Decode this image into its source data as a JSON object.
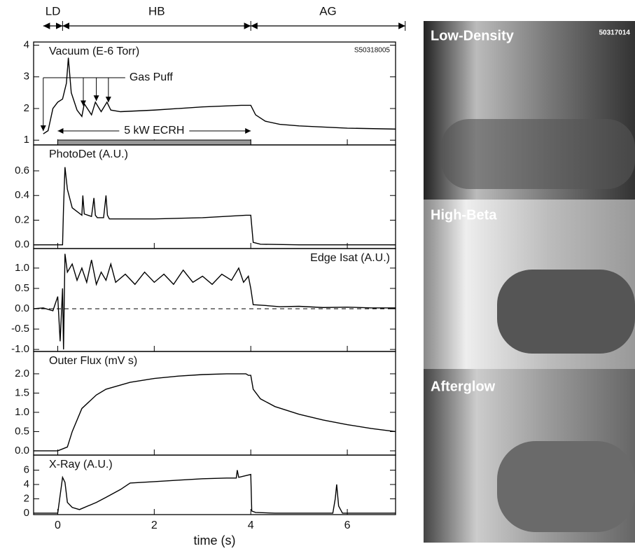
{
  "phases": [
    {
      "label": "LD",
      "start": -0.3,
      "end": 0.1
    },
    {
      "label": "HB",
      "start": 0.1,
      "end": 4
    },
    {
      "label": "AG",
      "start": 4,
      "end": 7.2
    }
  ],
  "photos": {
    "labels": [
      "Low-Density",
      "High-Beta",
      "Afterglow"
    ],
    "shot": "50317014"
  },
  "chart_data": [
    {
      "type": "line",
      "title": "Vacuum (E-6 Torr)",
      "shot": "S50318005",
      "gas_puff_label": "Gas Puff",
      "gas_puffs": [
        -0.3,
        0.53,
        0.8,
        1.05
      ],
      "ecrh_label": "5 kW ECRH",
      "ecrh": [
        0,
        4
      ],
      "x": [
        -0.3,
        -0.2,
        -0.1,
        0,
        0.1,
        0.18,
        0.22,
        0.28,
        0.4,
        0.5,
        0.55,
        0.7,
        0.78,
        0.9,
        1.02,
        1.1,
        1.3,
        2,
        3,
        3.8,
        4,
        4.1,
        4.3,
        4.6,
        5,
        6,
        7
      ],
      "values": [
        1.2,
        1.3,
        2.0,
        2.2,
        2.3,
        2.8,
        3.6,
        2.5,
        1.95,
        1.75,
        2.15,
        1.8,
        2.2,
        1.9,
        2.2,
        1.95,
        1.9,
        1.95,
        2.05,
        2.1,
        2.1,
        1.8,
        1.6,
        1.5,
        1.45,
        1.38,
        1.35
      ],
      "xlim": [
        -0.5,
        7
      ],
      "xticks": [
        0,
        2,
        4,
        6
      ],
      "ylim": [
        0.85,
        4.1
      ],
      "yticks": [
        1,
        2,
        3,
        4
      ],
      "color": "#000000"
    },
    {
      "type": "line",
      "title": "PhotoDet (A.U.)",
      "x": [
        -0.5,
        0.1,
        0.12,
        0.15,
        0.2,
        0.3,
        0.5,
        0.52,
        0.55,
        0.7,
        0.75,
        0.78,
        0.82,
        0.95,
        1.0,
        1.03,
        1.07,
        1.2,
        1.5,
        2,
        3,
        3.9,
        4.0,
        4.05,
        4.2,
        5,
        7
      ],
      "values": [
        0,
        0,
        0.3,
        0.63,
        0.45,
        0.3,
        0.24,
        0.4,
        0.25,
        0.23,
        0.38,
        0.24,
        0.22,
        0.22,
        0.4,
        0.24,
        0.21,
        0.21,
        0.21,
        0.21,
        0.22,
        0.24,
        0.24,
        0.02,
        0.005,
        0,
        0
      ],
      "xlim": [
        -0.5,
        7
      ],
      "xticks": [
        0,
        2,
        4,
        6
      ],
      "ylim": [
        -0.03,
        0.81
      ],
      "yticks": [
        {
          "value": 0,
          "label": "0.0"
        },
        0.2,
        0.4,
        0.6
      ],
      "color": "#000000"
    },
    {
      "type": "line",
      "title": "Edge Isat (A.U.)",
      "hline": 0,
      "x": [
        -0.5,
        -0.3,
        -0.1,
        0,
        0.05,
        0.1,
        0.12,
        0.15,
        0.2,
        0.3,
        0.4,
        0.5,
        0.6,
        0.7,
        0.8,
        0.9,
        1.0,
        1.1,
        1.2,
        1.4,
        1.6,
        1.8,
        2.0,
        2.2,
        2.4,
        2.6,
        2.8,
        3.0,
        3.2,
        3.4,
        3.6,
        3.75,
        3.85,
        3.95,
        4.0,
        4.05,
        4.3,
        4.6,
        5,
        5.5,
        6,
        6.5,
        7
      ],
      "values": [
        0,
        0.02,
        -0.05,
        0.3,
        -0.8,
        0.5,
        -1.0,
        1.35,
        0.9,
        1.1,
        0.7,
        1.0,
        0.65,
        1.2,
        0.6,
        0.9,
        0.7,
        1.1,
        0.65,
        0.85,
        0.6,
        0.9,
        0.65,
        0.85,
        0.6,
        0.95,
        0.65,
        0.8,
        0.6,
        0.85,
        0.7,
        1.0,
        0.65,
        0.8,
        0.5,
        0.1,
        0.08,
        0.05,
        0.06,
        0.03,
        0.04,
        0.02,
        0.02
      ],
      "xlim": [
        -0.5,
        7
      ],
      "xticks": [
        0,
        2,
        4,
        6
      ],
      "ylim": [
        -1.05,
        1.48
      ],
      "yticks": [
        {
          "value": -1,
          "label": "-1.0"
        },
        -0.5,
        {
          "value": 0,
          "label": "0.0"
        },
        0.5,
        {
          "value": 1,
          "label": "1.0"
        }
      ],
      "color": "#000000"
    },
    {
      "type": "line",
      "title": "Outer Flux (mV s)",
      "x": [
        -0.5,
        0,
        0.1,
        0.2,
        0.3,
        0.5,
        0.8,
        1,
        1.5,
        2,
        2.5,
        3,
        3.5,
        3.9,
        3.95,
        4,
        4.05,
        4.2,
        4.5,
        5,
        5.5,
        6,
        6.5,
        7
      ],
      "values": [
        0,
        0,
        0.05,
        0.1,
        0.5,
        1.1,
        1.45,
        1.6,
        1.78,
        1.88,
        1.94,
        1.98,
        2.0,
        2.0,
        1.96,
        1.96,
        1.6,
        1.35,
        1.15,
        0.95,
        0.8,
        0.68,
        0.58,
        0.5
      ],
      "xlim": [
        -0.5,
        7
      ],
      "xticks": [
        0,
        2,
        4,
        6
      ],
      "ylim": [
        -0.11,
        2.58
      ],
      "yticks": [
        {
          "value": 0,
          "label": "0.0"
        },
        0.5,
        {
          "value": 1,
          "label": "1.0"
        },
        1.5,
        {
          "value": 2,
          "label": "2.0"
        }
      ],
      "color": "#000000"
    },
    {
      "type": "line",
      "title": "X-Ray (A.U.)",
      "xlabel": "time (s)",
      "x": [
        -0.5,
        0,
        0.05,
        0.1,
        0.15,
        0.2,
        0.3,
        0.45,
        0.8,
        1,
        1.3,
        1.5,
        2,
        2.5,
        3,
        3.5,
        3.7,
        3.72,
        3.75,
        4,
        4.02,
        4.1,
        4.5,
        5.7,
        5.75,
        5.78,
        5.82,
        5.9,
        7
      ],
      "values": [
        0,
        0,
        2.5,
        5,
        4.3,
        1.5,
        0.8,
        0.5,
        1.5,
        2.2,
        3.3,
        4.2,
        4.4,
        4.6,
        4.8,
        4.9,
        4.9,
        6,
        5.0,
        5.4,
        0.3,
        0.1,
        0,
        0,
        2,
        4,
        1,
        0,
        0
      ],
      "xlim": [
        -0.5,
        7
      ],
      "xticks": [
        0,
        2,
        4,
        6
      ],
      "ylim": [
        -0.2,
        8.1
      ],
      "yticks": [
        0,
        2,
        4,
        6
      ],
      "color": "#000000"
    }
  ]
}
